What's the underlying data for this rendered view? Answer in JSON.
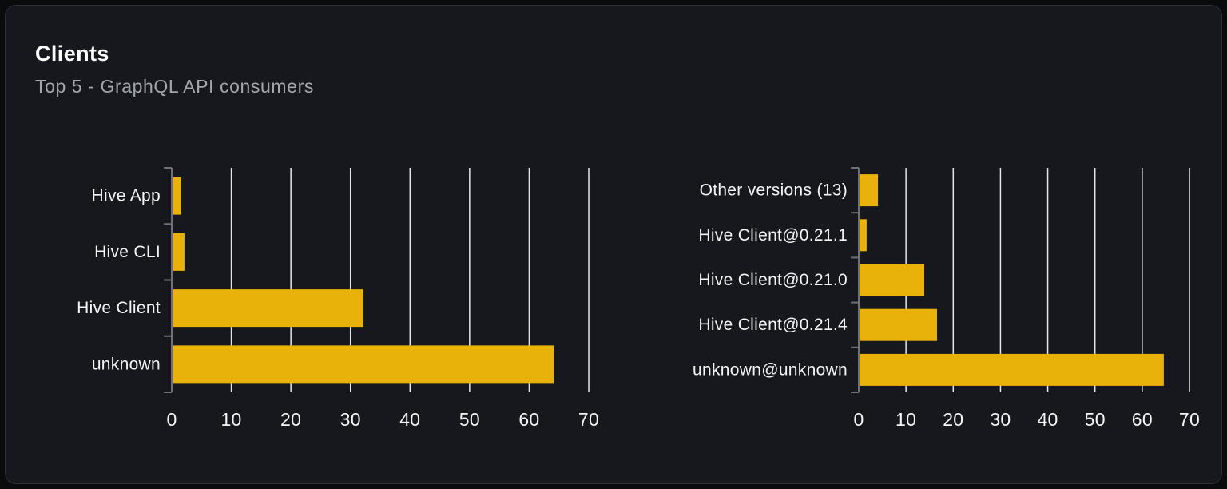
{
  "card": {
    "title": "Clients",
    "subtitle": "Top 5 - GraphQL API consumers"
  },
  "colors": {
    "bar": "#e9b20b",
    "card_background": "#16181d",
    "page_background": "#0a0b0d",
    "card_border": "#2c2f36",
    "gridline": "#e3e6ee",
    "axis": "#6e7179",
    "title_text": "#ffffff",
    "subtitle_text": "#a2a7af",
    "label_text": "#f3f4f6"
  },
  "chart_data": [
    {
      "type": "bar",
      "orientation": "horizontal",
      "name": "clients-by-name",
      "categories": [
        "Hive App",
        "Hive CLI",
        "Hive Client",
        "unknown"
      ],
      "values": [
        1.4,
        2.0,
        32.0,
        64.0
      ],
      "xlabel": "",
      "ylabel": "",
      "xlim": [
        0,
        70
      ],
      "xticks": [
        0,
        10,
        20,
        30,
        40,
        50,
        60,
        70
      ],
      "grid": true,
      "legend": "none",
      "bar_color": "#e9b20b"
    },
    {
      "type": "bar",
      "orientation": "horizontal",
      "name": "clients-by-version",
      "categories": [
        "Other versions (13)",
        "Hive Client@0.21.1",
        "Hive Client@0.21.0",
        "Hive Client@0.21.4",
        "unknown@unknown"
      ],
      "values": [
        3.9,
        1.5,
        13.7,
        16.4,
        64.4
      ],
      "xlabel": "",
      "ylabel": "",
      "xlim": [
        0,
        70
      ],
      "xticks": [
        0,
        10,
        20,
        30,
        40,
        50,
        60,
        70
      ],
      "grid": true,
      "legend": "none",
      "bar_color": "#e9b20b"
    }
  ]
}
